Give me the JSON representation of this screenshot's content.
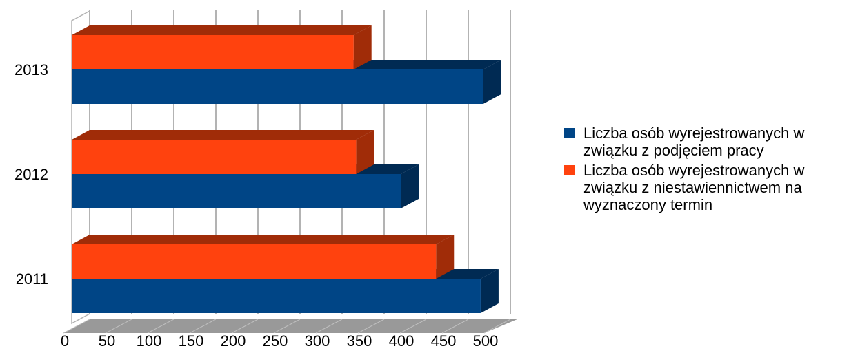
{
  "chart_data": {
    "type": "bar",
    "orientation": "horizontal",
    "three_d": true,
    "categories": [
      "2011",
      "2012",
      "2013"
    ],
    "series": [
      {
        "name": "Liczba osób wyrejestrowanych w związku z podjęciem pracy",
        "values": [
          486,
          391,
          489
        ],
        "color": "#004586"
      },
      {
        "name": "Liczba osób wyrejestrowanych w związku z niestawiennictwem na wyznaczony termin",
        "values": [
          433,
          338,
          335
        ],
        "color": "#ff420e"
      }
    ],
    "x_ticks": [
      0,
      50,
      100,
      150,
      200,
      250,
      300,
      350,
      400,
      450,
      500
    ],
    "xlim": [
      0,
      500
    ],
    "grid": true,
    "legend_position": "right"
  },
  "colors": {
    "grid": "#b3b3b3",
    "floor": "#999999",
    "series_1_shadow": "#002a53",
    "series_2_shadow": "#a02c08"
  }
}
